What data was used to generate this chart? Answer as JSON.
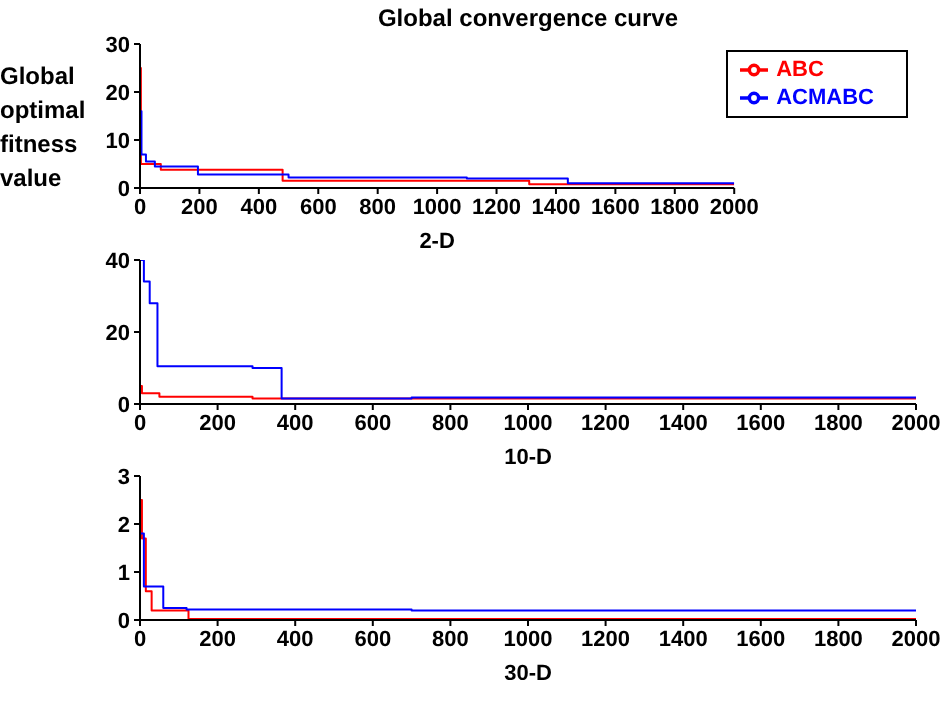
{
  "chart_data": [
    {
      "type": "step",
      "title": "Global convergence curve",
      "xlabel": "2-D",
      "ylabel": "Global optimal fitness value",
      "xlim": [
        0,
        2000
      ],
      "xticks": [
        0,
        200,
        400,
        600,
        800,
        1000,
        1200,
        1400,
        1600,
        1800,
        2000
      ],
      "ylim": [
        0,
        30
      ],
      "yticks": [
        0,
        10,
        20,
        30
      ],
      "legend": "top right",
      "series": [
        {
          "name": "ABC",
          "color": "#ff0000",
          "x": [
            0,
            3,
            70,
            480,
            1310,
            2000
          ],
          "values": [
            25,
            5,
            3.8,
            1.5,
            0.8,
            0.8
          ]
        },
        {
          "name": "ACMABC",
          "color": "#0000ff",
          "x": [
            0,
            5,
            20,
            50,
            195,
            500,
            1100,
            1440,
            2000
          ],
          "values": [
            16,
            7,
            5.5,
            4.5,
            2.8,
            2.2,
            2,
            1,
            1
          ]
        }
      ]
    },
    {
      "type": "step",
      "xlabel": "10-D",
      "xlim": [
        0,
        2000
      ],
      "xticks": [
        0,
        200,
        400,
        600,
        800,
        1000,
        1200,
        1400,
        1600,
        1800,
        2000
      ],
      "ylim": [
        0,
        40
      ],
      "yticks": [
        0,
        20,
        40
      ],
      "series": [
        {
          "color": "#ff0000",
          "x": [
            0,
            5,
            50,
            290,
            2000
          ],
          "values": [
            5,
            3,
            2,
            1.5,
            1.5
          ]
        },
        {
          "color": "#0000ff",
          "x": [
            0,
            10,
            25,
            45,
            290,
            365,
            700,
            2000
          ],
          "values": [
            40,
            34,
            28,
            10.5,
            10,
            1.5,
            1.8,
            1.8
          ]
        }
      ]
    },
    {
      "type": "step",
      "xlabel": "30-D",
      "xlim": [
        0,
        2000
      ],
      "xticks": [
        0,
        200,
        400,
        600,
        800,
        1000,
        1200,
        1400,
        1600,
        1800,
        2000
      ],
      "ylim": [
        0,
        3
      ],
      "yticks": [
        0,
        1,
        2,
        3
      ],
      "series": [
        {
          "color": "#ff0000",
          "x": [
            0,
            5,
            15,
            30,
            125,
            2000
          ],
          "values": [
            2.5,
            1.7,
            0.6,
            0.2,
            0.02,
            0.02
          ]
        },
        {
          "color": "#0000ff",
          "x": [
            0,
            10,
            60,
            120,
            700,
            2000
          ],
          "values": [
            1.8,
            0.7,
            0.25,
            0.22,
            0.2,
            0.2
          ]
        }
      ]
    }
  ]
}
